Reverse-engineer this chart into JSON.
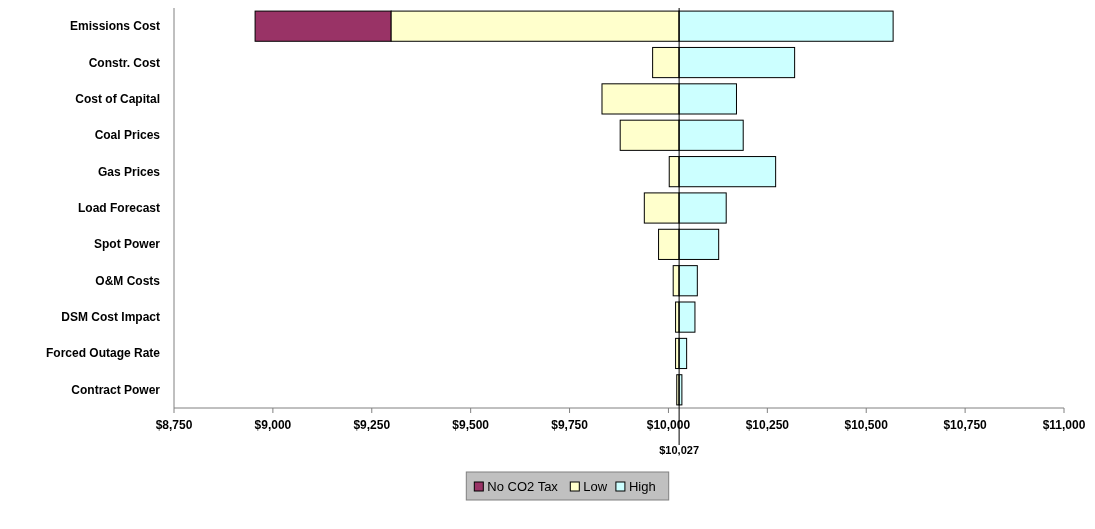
{
  "chart_data": {
    "type": "bar",
    "orientation": "horizontal",
    "categories": [
      "Emissions Cost",
      "Constr. Cost",
      "Cost of Capital",
      "Coal Prices",
      "Gas Prices",
      "Load Forecast",
      "Spot Power",
      "O&M Costs",
      "DSM Cost Impact",
      "Forced Outage Rate",
      "Contract Power"
    ],
    "series": [
      {
        "name": "No CO2 Tax",
        "color": "#993366",
        "base": [
          8955,
          null,
          null,
          null,
          null,
          null,
          null,
          null,
          null,
          null,
          null
        ],
        "values": [
          344,
          null,
          null,
          null,
          null,
          null,
          null,
          null,
          null,
          null,
          null
        ]
      },
      {
        "name": "Low",
        "color": "#ffffcc",
        "base": [
          9299,
          9960,
          9832,
          9878,
          10002,
          9939,
          9975,
          10012,
          10018,
          10018,
          10021
        ],
        "values": [
          728,
          67,
          195,
          149,
          25,
          88,
          52,
          15,
          9,
          9,
          6
        ]
      },
      {
        "name": "High",
        "color": "#ccffff",
        "base": [
          10027,
          10027,
          10027,
          10027,
          10027,
          10027,
          10027,
          10027,
          10027,
          10027,
          10027
        ],
        "values": [
          541,
          292,
          145,
          162,
          244,
          119,
          100,
          46,
          40,
          19,
          7
        ]
      }
    ],
    "xlim": [
      8750,
      11000
    ],
    "xticks": [
      {
        "value": 8750,
        "label": "$8,750"
      },
      {
        "value": 9000,
        "label": "$9,000"
      },
      {
        "value": 9250,
        "label": "$9,250"
      },
      {
        "value": 9500,
        "label": "$9,500"
      },
      {
        "value": 9750,
        "label": "$9,750"
      },
      {
        "value": 10000,
        "label": "$10,000"
      },
      {
        "value": 10250,
        "label": "$10,250"
      },
      {
        "value": 10500,
        "label": "$10,500"
      },
      {
        "value": 10750,
        "label": "$10,750"
      },
      {
        "value": 11000,
        "label": "$11,000"
      }
    ],
    "ref_lines": [
      {
        "axis": "x",
        "value": 10027,
        "label": "$10,027",
        "color": "#000000"
      }
    ],
    "legend": "bottom"
  }
}
